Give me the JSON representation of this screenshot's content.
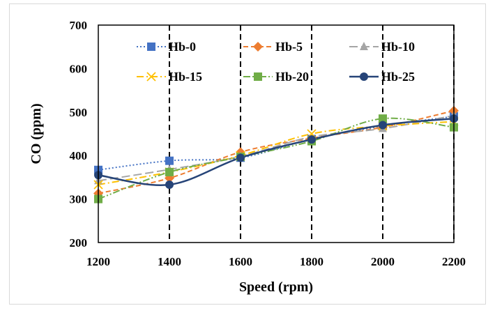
{
  "chart_data": {
    "type": "line",
    "title": "",
    "xlabel": "Speed (rpm)",
    "ylabel": "CO (ppm)",
    "x": [
      1200,
      1400,
      1600,
      1800,
      2000,
      2200
    ],
    "xlim": [
      1200,
      2200
    ],
    "ylim": [
      200,
      700
    ],
    "xticks": [
      "1200",
      "1400",
      "1600",
      "1800",
      "2000",
      "2200"
    ],
    "yticks": [
      "200",
      "300",
      "400",
      "500",
      "600",
      "700"
    ],
    "vertical_dashed_lines": [
      1400,
      1600,
      1800,
      2000,
      2200
    ],
    "legend_position": "top",
    "series": [
      {
        "name": "Hb-0",
        "values": [
          367,
          388,
          395,
          438,
          468,
          490
        ],
        "color": "#4472c4",
        "marker": "square",
        "dash": "dotted"
      },
      {
        "name": "Hb-5",
        "values": [
          313,
          348,
          408,
          440,
          465,
          503
        ],
        "color": "#ed7d31",
        "marker": "diamond",
        "dash": "dashed"
      },
      {
        "name": "Hb-10",
        "values": [
          342,
          368,
          398,
          443,
          462,
          492
        ],
        "color": "#a5a5a5",
        "marker": "triangle",
        "dash": "longdash"
      },
      {
        "name": "Hb-15",
        "values": [
          333,
          362,
          400,
          450,
          468,
          478
        ],
        "color": "#ffc000",
        "marker": "x",
        "dash": "dashdot"
      },
      {
        "name": "Hb-20",
        "values": [
          300,
          362,
          397,
          433,
          485,
          465
        ],
        "color": "#70ad47",
        "marker": "square",
        "dash": "dashdotdot"
      },
      {
        "name": "Hb-25",
        "values": [
          355,
          333,
          395,
          437,
          470,
          485
        ],
        "color": "#264478",
        "marker": "circle",
        "dash": "solid"
      }
    ]
  }
}
